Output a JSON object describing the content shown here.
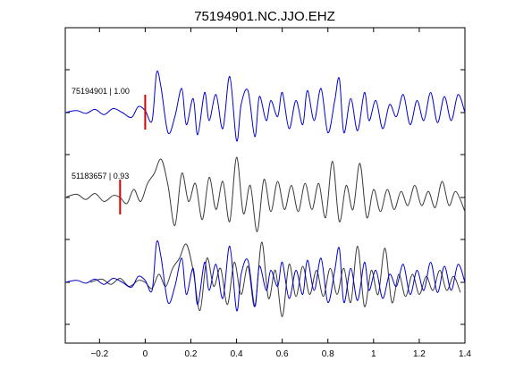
{
  "chart_data": {
    "type": "line",
    "title": "75194901.NC.JJO.EHZ",
    "xlabel": "",
    "ylabel": "",
    "xlim": [
      -0.35,
      1.4
    ],
    "x_ticks": [
      -0.2,
      0,
      0.2,
      0.4,
      0.6,
      0.8,
      1,
      1.2,
      1.4
    ],
    "x_tick_labels": [
      "−0.2",
      "0",
      "0.2",
      "0.4",
      "0.6",
      "0.8",
      "1",
      "1.2",
      "1.4"
    ],
    "grid": false,
    "colors": {
      "primary": "#0000cc",
      "secondary": "#3a3a3a",
      "pick": "#dd0000",
      "axes": "#000000"
    },
    "traces": [
      {
        "label": "75194901 | 1.00",
        "pick_time": 0.0,
        "color": "#0000cc",
        "times": [
          -0.35,
          -0.3,
          -0.26,
          -0.22,
          -0.18,
          -0.14,
          -0.1,
          -0.06,
          -0.03,
          0.0,
          0.03,
          0.05,
          0.07,
          0.1,
          0.13,
          0.16,
          0.18,
          0.21,
          0.23,
          0.26,
          0.28,
          0.31,
          0.34,
          0.37,
          0.4,
          0.42,
          0.45,
          0.48,
          0.5,
          0.53,
          0.55,
          0.58,
          0.6,
          0.63,
          0.66,
          0.69,
          0.71,
          0.74,
          0.77,
          0.8,
          0.83,
          0.85,
          0.87,
          0.9,
          0.93,
          0.96,
          0.98,
          1.01,
          1.04,
          1.07,
          1.1,
          1.13,
          1.16,
          1.19,
          1.22,
          1.25,
          1.28,
          1.31,
          1.34,
          1.37,
          1.4
        ],
        "amplitudes": [
          0.0,
          0.05,
          -0.02,
          0.08,
          -0.05,
          0.1,
          0.0,
          -0.12,
          0.15,
          0.05,
          -0.2,
          1.0,
          0.6,
          -0.5,
          -0.1,
          0.6,
          -0.3,
          0.35,
          -0.55,
          0.5,
          -0.2,
          0.45,
          -0.4,
          0.9,
          -0.7,
          0.2,
          0.55,
          -0.6,
          0.4,
          -0.2,
          0.3,
          -0.1,
          0.5,
          -0.4,
          0.3,
          -0.3,
          0.55,
          -0.2,
          0.6,
          -0.5,
          0.3,
          0.85,
          -0.5,
          0.35,
          -0.45,
          0.5,
          -0.2,
          0.3,
          -0.4,
          0.2,
          -0.1,
          0.45,
          -0.3,
          0.3,
          -0.2,
          0.5,
          -0.25,
          0.4,
          -0.2,
          0.45,
          0.0
        ]
      },
      {
        "label": "51183657 | 0.93",
        "pick_time": -0.11,
        "color": "#3a3a3a",
        "times": [
          -0.35,
          -0.3,
          -0.26,
          -0.22,
          -0.18,
          -0.14,
          -0.11,
          -0.08,
          -0.05,
          -0.02,
          0.01,
          0.04,
          0.07,
          0.1,
          0.13,
          0.16,
          0.19,
          0.22,
          0.25,
          0.28,
          0.31,
          0.34,
          0.37,
          0.4,
          0.43,
          0.46,
          0.49,
          0.52,
          0.55,
          0.58,
          0.61,
          0.64,
          0.67,
          0.7,
          0.73,
          0.76,
          0.79,
          0.82,
          0.85,
          0.88,
          0.91,
          0.94,
          0.97,
          1.0,
          1.03,
          1.06,
          1.09,
          1.12,
          1.15,
          1.18,
          1.21,
          1.24,
          1.27,
          1.3,
          1.33,
          1.36,
          1.4
        ],
        "amplitudes": [
          0.0,
          0.08,
          -0.05,
          0.1,
          -0.1,
          0.05,
          0.0,
          -0.15,
          0.2,
          -0.1,
          0.35,
          0.6,
          0.95,
          0.3,
          -0.7,
          0.6,
          -0.1,
          0.35,
          -0.55,
          0.5,
          -0.3,
          0.4,
          -0.6,
          1.0,
          -0.4,
          0.3,
          -0.85,
          0.45,
          -0.35,
          0.4,
          -0.3,
          0.3,
          -0.35,
          0.35,
          -0.3,
          0.35,
          -0.5,
          0.9,
          -0.6,
          0.3,
          -0.3,
          0.85,
          -0.5,
          0.2,
          -0.35,
          0.2,
          -0.3,
          0.15,
          -0.2,
          0.3,
          -0.2,
          0.15,
          -0.25,
          0.4,
          -0.2,
          0.15,
          -0.35
        ]
      }
    ]
  }
}
